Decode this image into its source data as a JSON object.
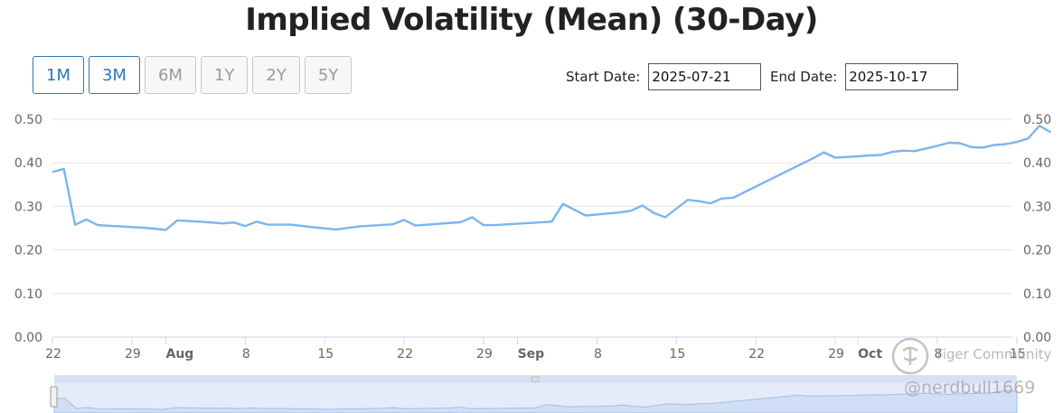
{
  "title": "Implied Volatility (Mean) (30-Day)",
  "range_buttons": [
    {
      "label": "1M",
      "state": "active"
    },
    {
      "label": "3M",
      "state": "active"
    },
    {
      "label": "6M",
      "state": "disabled"
    },
    {
      "label": "1Y",
      "state": "disabled"
    },
    {
      "label": "2Y",
      "state": "disabled"
    },
    {
      "label": "5Y",
      "state": "disabled"
    }
  ],
  "start_date": {
    "label": "Start Date:",
    "value": "2025-07-21"
  },
  "end_date": {
    "label": "End Date:",
    "value": "2025-10-17"
  },
  "watermark": {
    "brand": "Tiger Community",
    "handle": "@nerdbull1669"
  },
  "colors": {
    "line": "#7cb5ec",
    "grid": "#e6e6e6",
    "navigator_fill": "#e4ebf9",
    "active_button": "#2a78b8"
  },
  "chart_data": {
    "type": "line",
    "title": "Implied Volatility (Mean) (30-Day)",
    "xlabel": "",
    "ylabel": "",
    "xlim": [
      "2025-07-22",
      "2025-10-17"
    ],
    "ylim": [
      0,
      0.5
    ],
    "y_ticks": [
      "0.00",
      "0.10",
      "0.20",
      "0.30",
      "0.40",
      "0.50"
    ],
    "x_ticks": [
      {
        "date": "2025-07-22",
        "label": "22"
      },
      {
        "date": "2025-07-29",
        "label": "29"
      },
      {
        "date": "2025-08-01",
        "label": "Aug",
        "bold": true
      },
      {
        "date": "2025-08-08",
        "label": "8"
      },
      {
        "date": "2025-08-15",
        "label": "15"
      },
      {
        "date": "2025-08-22",
        "label": "22"
      },
      {
        "date": "2025-08-29",
        "label": "29"
      },
      {
        "date": "2025-09-01",
        "label": "Sep",
        "bold": true
      },
      {
        "date": "2025-09-08",
        "label": "8"
      },
      {
        "date": "2025-09-15",
        "label": "15"
      },
      {
        "date": "2025-09-22",
        "label": "22"
      },
      {
        "date": "2025-09-29",
        "label": "29"
      },
      {
        "date": "2025-10-01",
        "label": "Oct",
        "bold": true
      },
      {
        "date": "2025-10-08",
        "label": "8"
      },
      {
        "date": "2025-10-15",
        "label": "15"
      }
    ],
    "grid": true,
    "dual_y_axis": true,
    "series": [
      {
        "points": [
          [
            "2025-07-22",
            0.379
          ],
          [
            "2025-07-23",
            0.386
          ],
          [
            "2025-07-24",
            0.258
          ],
          [
            "2025-07-25",
            0.27
          ],
          [
            "2025-07-26",
            0.257
          ],
          [
            "2025-07-28",
            0.254
          ],
          [
            "2025-07-30",
            0.251
          ],
          [
            "2025-07-31",
            0.249
          ],
          [
            "2025-08-01",
            0.246
          ],
          [
            "2025-08-02",
            0.268
          ],
          [
            "2025-08-04",
            0.265
          ],
          [
            "2025-08-05",
            0.263
          ],
          [
            "2025-08-06",
            0.261
          ],
          [
            "2025-08-07",
            0.263
          ],
          [
            "2025-08-08",
            0.255
          ],
          [
            "2025-08-09",
            0.265
          ],
          [
            "2025-08-10",
            0.258
          ],
          [
            "2025-08-12",
            0.258
          ],
          [
            "2025-08-14",
            0.252
          ],
          [
            "2025-08-16",
            0.247
          ],
          [
            "2025-08-18",
            0.254
          ],
          [
            "2025-08-21",
            0.259
          ],
          [
            "2025-08-22",
            0.269
          ],
          [
            "2025-08-23",
            0.256
          ],
          [
            "2025-08-27",
            0.264
          ],
          [
            "2025-08-28",
            0.275
          ],
          [
            "2025-08-29",
            0.257
          ],
          [
            "2025-08-30",
            0.257
          ],
          [
            "2025-09-04",
            0.265
          ],
          [
            "2025-09-05",
            0.306
          ],
          [
            "2025-09-07",
            0.279
          ],
          [
            "2025-09-10",
            0.286
          ],
          [
            "2025-09-11",
            0.29
          ],
          [
            "2025-09-12",
            0.302
          ],
          [
            "2025-09-13",
            0.285
          ],
          [
            "2025-09-14",
            0.275
          ],
          [
            "2025-09-16",
            0.315
          ],
          [
            "2025-09-17",
            0.312
          ],
          [
            "2025-09-18",
            0.307
          ],
          [
            "2025-09-19",
            0.318
          ],
          [
            "2025-09-20",
            0.32
          ],
          [
            "2025-09-27",
            0.41
          ],
          [
            "2025-09-28",
            0.424
          ],
          [
            "2025-09-29",
            0.412
          ],
          [
            "2025-10-01",
            0.415
          ],
          [
            "2025-10-02",
            0.417
          ],
          [
            "2025-10-03",
            0.418
          ],
          [
            "2025-10-04",
            0.425
          ],
          [
            "2025-10-05",
            0.428
          ],
          [
            "2025-10-06",
            0.427
          ],
          [
            "2025-10-07",
            0.433
          ],
          [
            "2025-10-08",
            0.439
          ],
          [
            "2025-10-09",
            0.446
          ],
          [
            "2025-10-10",
            0.445
          ],
          [
            "2025-10-11",
            0.436
          ],
          [
            "2025-10-12",
            0.435
          ],
          [
            "2025-10-13",
            0.441
          ],
          [
            "2025-10-14",
            0.443
          ],
          [
            "2025-10-15",
            0.448
          ],
          [
            "2025-10-16",
            0.456
          ],
          [
            "2025-10-17",
            0.485
          ],
          [
            "2025-10-18",
            0.47
          ]
        ]
      }
    ]
  }
}
